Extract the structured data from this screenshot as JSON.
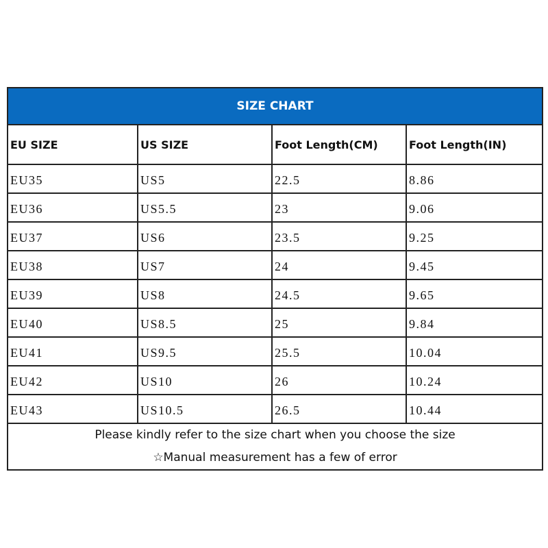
{
  "title": "SIZE CHART",
  "colors": {
    "header_bg": "#0a6bc0",
    "header_text": "#ffffff",
    "border": "#222222"
  },
  "columns": [
    "EU SIZE",
    "US SIZE",
    "Foot Length(CM)",
    "Foot Length(IN)"
  ],
  "rows": [
    [
      "EU35",
      "US5",
      "22.5",
      "8.86"
    ],
    [
      "EU36",
      "US5.5",
      "23",
      "9.06"
    ],
    [
      "EU37",
      "US6",
      "23.5",
      "9.25"
    ],
    [
      "EU38",
      "US7",
      "24",
      "9.45"
    ],
    [
      "EU39",
      "US8",
      "24.5",
      "9.65"
    ],
    [
      "EU40",
      "US8.5",
      "25",
      "9.84"
    ],
    [
      "EU41",
      "US9.5",
      "25.5",
      "10.04"
    ],
    [
      "EU42",
      "US10",
      "26",
      "10.24"
    ],
    [
      "EU43",
      "US10.5",
      "26.5",
      "10.44"
    ]
  ],
  "footer": {
    "note1": "Please kindly refer to the size chart when you choose the size",
    "note2": "☆Manual measurement has a few of error"
  }
}
